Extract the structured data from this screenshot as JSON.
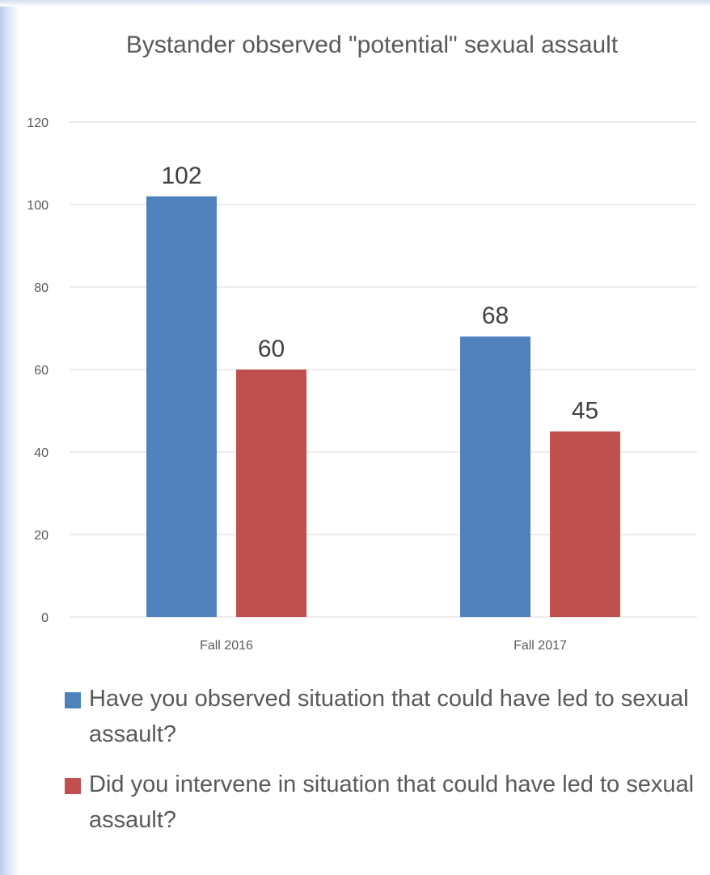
{
  "chart_data": {
    "type": "bar",
    "title": "Bystander observed \"potential\" sexual assault",
    "categories": [
      "Fall 2016",
      "Fall 2017"
    ],
    "series": [
      {
        "name": "Have you observed situation that could have led to sexual assault?",
        "values": [
          102,
          68
        ],
        "color": "#4f81bd"
      },
      {
        "name": "Did you intervene in situation that could have led to sexual assault?",
        "values": [
          60,
          45
        ],
        "color": "#c0504d"
      }
    ],
    "ylim": [
      0,
      120
    ],
    "yticks": [
      0,
      20,
      40,
      60,
      80,
      100,
      120
    ],
    "xlabel": "",
    "ylabel": "",
    "grid": true,
    "legend": "bottom",
    "data_labels": true
  }
}
